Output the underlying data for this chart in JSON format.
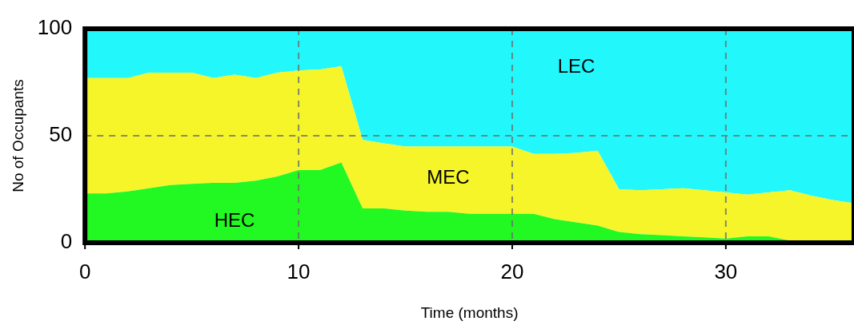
{
  "chart_data": {
    "type": "area",
    "stacked": true,
    "xlabel": "Time (months)",
    "ylabel": "No of Occupants",
    "x": [
      0,
      1,
      2,
      3,
      4,
      5,
      6,
      7,
      8,
      9,
      10,
      11,
      12,
      13,
      14,
      15,
      16,
      17,
      18,
      19,
      20,
      21,
      22,
      23,
      24,
      25,
      26,
      27,
      28,
      29,
      30,
      31,
      32,
      33,
      34,
      35,
      36
    ],
    "series": [
      {
        "name": "HEC",
        "color": "#22f822",
        "values": [
          23,
          23,
          24,
          25.5,
          27,
          27.5,
          28,
          28,
          29,
          31,
          34,
          34,
          37.5,
          16,
          16,
          15,
          14.5,
          14.5,
          13.5,
          13.5,
          13.5,
          13.5,
          11,
          9.5,
          8,
          5,
          4,
          3.5,
          3,
          2.5,
          2,
          3,
          3,
          1,
          1,
          1,
          1
        ]
      },
      {
        "name": "MEC",
        "color": "#f5f52a",
        "values": [
          54,
          54,
          53,
          54,
          52.5,
          52,
          49,
          50.5,
          48,
          48.5,
          46.5,
          47,
          45,
          32,
          30.5,
          30,
          30.5,
          30.5,
          31.5,
          31.5,
          31.5,
          28,
          30.5,
          32.5,
          35,
          20,
          20.5,
          21.5,
          22.5,
          22,
          21.5,
          19.5,
          20.5,
          23.5,
          21,
          19,
          17.5
        ]
      },
      {
        "name": "LEC",
        "color": "#22f8fc",
        "values": [
          23,
          23,
          23,
          20.5,
          20.5,
          20.5,
          23,
          21.5,
          23,
          20.5,
          19.5,
          19,
          17.5,
          52,
          53.5,
          55,
          55,
          55,
          55,
          55,
          55,
          58.5,
          58.5,
          58,
          57,
          75,
          75.5,
          75,
          74.5,
          75.5,
          76.5,
          77.5,
          76.5,
          75.5,
          78,
          80,
          81.5
        ]
      }
    ],
    "xlim": [
      0,
      36
    ],
    "xticks": [
      0,
      10,
      20,
      30
    ],
    "ylim": [
      0,
      100
    ],
    "yticks": [
      0,
      50,
      100
    ],
    "grid": true,
    "legend": false
  }
}
